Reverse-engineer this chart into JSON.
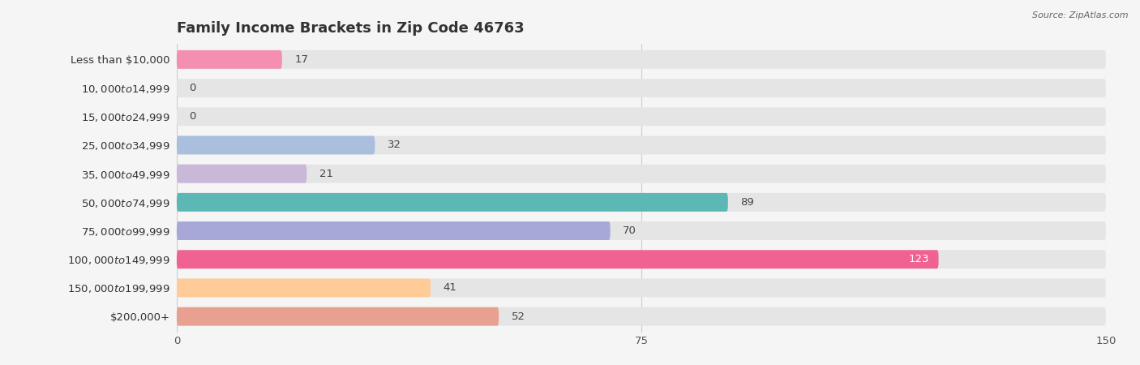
{
  "title": "Family Income Brackets in Zip Code 46763",
  "source": "Source: ZipAtlas.com",
  "categories": [
    "Less than $10,000",
    "$10,000 to $14,999",
    "$15,000 to $24,999",
    "$25,000 to $34,999",
    "$35,000 to $49,999",
    "$50,000 to $74,999",
    "$75,000 to $99,999",
    "$100,000 to $149,999",
    "$150,000 to $199,999",
    "$200,000+"
  ],
  "values": [
    17,
    0,
    0,
    32,
    21,
    89,
    70,
    123,
    41,
    52
  ],
  "bar_colors": [
    "#F48FB1",
    "#FFCC99",
    "#F4A9A8",
    "#AABEDE",
    "#C9B8D8",
    "#5BB8B4",
    "#A8A8D8",
    "#F06292",
    "#FFCC99",
    "#E8A090"
  ],
  "xlim": [
    0,
    150
  ],
  "xticks": [
    0,
    75,
    150
  ],
  "background_color": "#f5f5f5",
  "bar_bg_color": "#e5e5e5",
  "title_fontsize": 13,
  "label_fontsize": 9.5,
  "value_fontsize": 9.5,
  "bar_height": 0.65,
  "value_label_white": [
    123
  ]
}
